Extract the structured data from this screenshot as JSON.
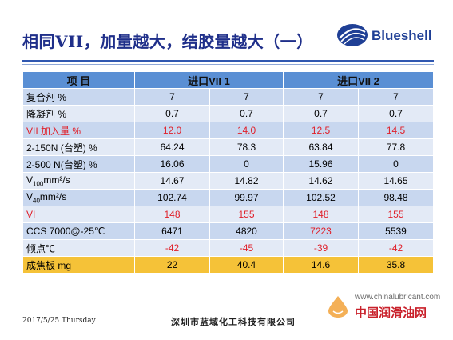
{
  "title": "相同VII，加量越大，结胶量越大（一）",
  "logo": {
    "text": "Blueshell"
  },
  "table": {
    "header": [
      "项 目",
      "进口VII 1",
      "进口VII 2"
    ],
    "rows": [
      {
        "label": "复合剂 %",
        "values": [
          "7",
          "7",
          "7",
          "7"
        ],
        "red_label": false,
        "red_values": false
      },
      {
        "label": "降凝剂 %",
        "values": [
          "0.7",
          "0.7",
          "0.7",
          "0.7"
        ],
        "red_label": false,
        "red_values": false
      },
      {
        "label": "VII 加入量 %",
        "values": [
          "12.0",
          "14.0",
          "12.5",
          "14.5"
        ],
        "red_label": true,
        "red_values": true
      },
      {
        "label": "2-150N (台塑) %",
        "values": [
          "64.24",
          "78.3",
          "63.84",
          "77.8"
        ],
        "red_label": false,
        "red_values": false
      },
      {
        "label": "2-500 N(台塑) %",
        "values": [
          "16.06",
          "0",
          "15.96",
          "0"
        ],
        "red_label": false,
        "red_values": false
      },
      {
        "label": "V100mm²/s",
        "label_main": "V",
        "label_sub": "100",
        "label_tail": "mm²/s",
        "values": [
          "14.67",
          "14.82",
          "14.62",
          "14.65"
        ],
        "red_label": false,
        "red_values": false
      },
      {
        "label": "V40mm²/s",
        "label_main": "V",
        "label_sub": "40",
        "label_tail": "mm²/s",
        "values": [
          "102.74",
          "99.97",
          "102.52",
          "98.48"
        ],
        "red_label": false,
        "red_values": false
      },
      {
        "label": "VI",
        "values": [
          "148",
          "155",
          "148",
          "155"
        ],
        "red_label": true,
        "red_values": true
      },
      {
        "label": "CCS 7000@-25℃",
        "values": [
          "6471",
          "4820",
          "7223",
          "5539"
        ],
        "red_label": false,
        "red_values": false,
        "red_cols": [
          2
        ]
      },
      {
        "label": "倾点℃",
        "values": [
          "-42",
          "-45",
          "-39",
          "-42"
        ],
        "red_label": false,
        "red_values": true
      },
      {
        "label": "成焦板  mg",
        "values": [
          "22",
          "40.4",
          "14.6",
          "35.8"
        ],
        "red_label": false,
        "red_values": false
      }
    ]
  },
  "footer": {
    "date": "2017/5/25 Thursday",
    "company": "深圳市蓝域化工科技有限公司"
  },
  "watermark": {
    "url": "www.chinalubricant.com",
    "name": "中国润滑油网"
  },
  "colors": {
    "title": "#1f2f8a",
    "header_bg": "#5a8fd4",
    "row_odd": "#c8d7ef",
    "row_even": "#e3eaf6",
    "highlight_row": "#f5c238",
    "red_text": "#e0202a"
  }
}
